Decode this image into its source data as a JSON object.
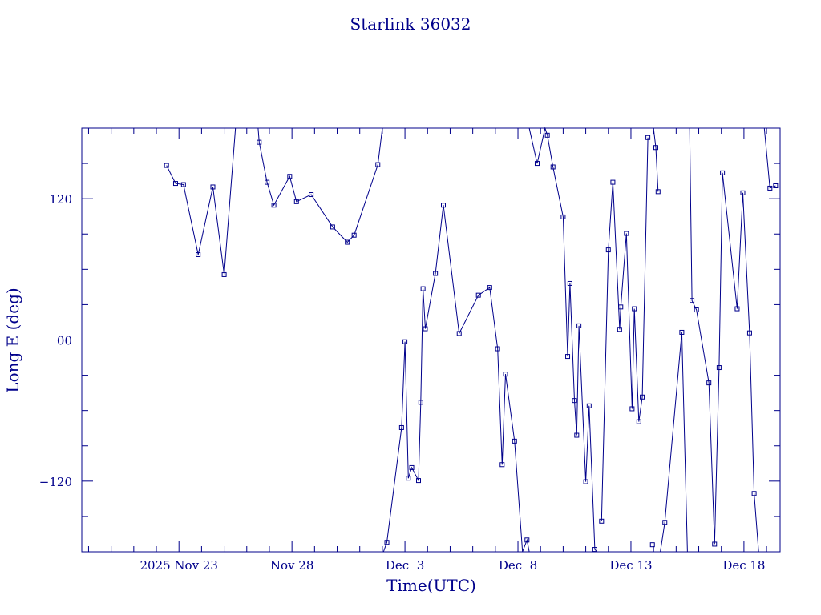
{
  "chart_data": {
    "type": "scatter",
    "title": "Starlink 36032",
    "xlabel": "Time(UTC)",
    "ylabel": "Long E (deg)",
    "x_ticks": [
      {
        "value": 2.0,
        "label": "2025 Nov 23"
      },
      {
        "value": 7.0,
        "label": "Nov 28"
      },
      {
        "value": 12.0,
        "label": "Dec  3"
      },
      {
        "value": 17.0,
        "label": "Dec  8"
      },
      {
        "value": 22.0,
        "label": "Dec 13"
      },
      {
        "value": 27.0,
        "label": "Dec 18"
      }
    ],
    "y_ticks": [
      {
        "value": 120,
        "label": "120"
      },
      {
        "value": 0,
        "label": "00"
      },
      {
        "value": -120,
        "label": "−120"
      }
    ],
    "xlim": [
      -2.3,
      28.6
    ],
    "ylim": [
      -180,
      180
    ],
    "colors": {
      "line": "#00008b",
      "axes": "#00008b",
      "text": "#00008b"
    },
    "series": [
      {
        "points": [
          [
            1.45,
            148.3
          ],
          [
            1.85,
            133.0
          ],
          [
            2.2,
            132.0
          ],
          [
            2.85,
            72.5
          ],
          [
            3.5,
            130.0
          ],
          [
            4.0,
            55.5
          ],
          [
            4.5,
            180.0
          ],
          [
            5.5,
            180.0
          ],
          [
            5.55,
            168.0
          ],
          [
            5.9,
            134.0
          ],
          [
            6.2,
            114.5
          ],
          [
            6.9,
            139.0
          ],
          [
            7.2,
            117.5
          ],
          [
            7.85,
            123.5
          ],
          [
            8.8,
            96.0
          ],
          [
            9.45,
            83.0
          ],
          [
            9.75,
            89.0
          ],
          [
            10.8,
            149.0
          ],
          [
            11.0,
            180.0
          ],
          [
            11.05,
            -180.0
          ],
          [
            11.2,
            -172.0
          ],
          [
            11.85,
            -74.5
          ],
          [
            12.0,
            -1.5
          ],
          [
            12.15,
            -117.5
          ],
          [
            12.3,
            -108.5
          ],
          [
            12.6,
            -119.5
          ],
          [
            12.7,
            -53.0
          ],
          [
            12.8,
            43.5
          ],
          [
            12.9,
            9.5
          ],
          [
            13.35,
            56.5
          ],
          [
            13.7,
            114.5
          ],
          [
            14.4,
            5.5
          ],
          [
            15.25,
            38.0
          ],
          [
            15.75,
            44.5
          ],
          [
            16.1,
            -7.5
          ],
          [
            16.3,
            -106.0
          ],
          [
            16.45,
            -29.0
          ],
          [
            16.85,
            -86.0
          ],
          [
            17.2,
            -180.0
          ],
          [
            17.4,
            -170.0
          ],
          [
            17.5,
            -180.0
          ],
          [
            17.5,
            180.0
          ],
          [
            17.85,
            150.0
          ],
          [
            18.2,
            180.0
          ],
          [
            18.3,
            174.0
          ],
          [
            18.55,
            147.0
          ],
          [
            19.0,
            104.5
          ],
          [
            19.2,
            -14.0
          ],
          [
            19.3,
            48.0
          ],
          [
            19.5,
            -51.5
          ],
          [
            19.6,
            -81.0
          ],
          [
            19.7,
            12.0
          ],
          [
            20.0,
            -120.5
          ],
          [
            20.15,
            -56.0
          ],
          [
            20.4,
            -178.0
          ],
          [
            20.5,
            -180.0
          ],
          [
            20.5,
            180.0
          ],
          [
            20.65,
            180.0
          ],
          [
            20.7,
            -154.0
          ],
          [
            21.0,
            76.5
          ],
          [
            21.2,
            134.0
          ],
          [
            21.5,
            9.0
          ],
          [
            21.55,
            28.0
          ],
          [
            21.8,
            90.5
          ],
          [
            22.05,
            -58.5
          ],
          [
            22.15,
            26.5
          ],
          [
            22.35,
            -69.5
          ],
          [
            22.5,
            -48.5
          ],
          [
            22.75,
            172.0
          ],
          [
            22.95,
            -174.0
          ],
          [
            23.0,
            180.0
          ],
          [
            23.1,
            163.5
          ],
          [
            23.2,
            126.0
          ],
          [
            23.3,
            -180.0
          ],
          [
            23.5,
            -155.0
          ],
          [
            24.25,
            6.5
          ],
          [
            24.5,
            -180.0
          ],
          [
            24.6,
            180.0
          ],
          [
            24.7,
            33.5
          ],
          [
            24.9,
            25.5
          ],
          [
            25.45,
            -36.5
          ],
          [
            25.7,
            -173.5
          ],
          [
            25.9,
            -23.5
          ],
          [
            26.05,
            142.0
          ],
          [
            26.7,
            26.5
          ],
          [
            26.95,
            125.0
          ],
          [
            27.25,
            6.0
          ],
          [
            27.45,
            -130.5
          ],
          [
            27.65,
            -180.0
          ],
          [
            27.9,
            180.0
          ],
          [
            28.15,
            129.0
          ],
          [
            28.4,
            131.0
          ]
        ]
      }
    ]
  }
}
